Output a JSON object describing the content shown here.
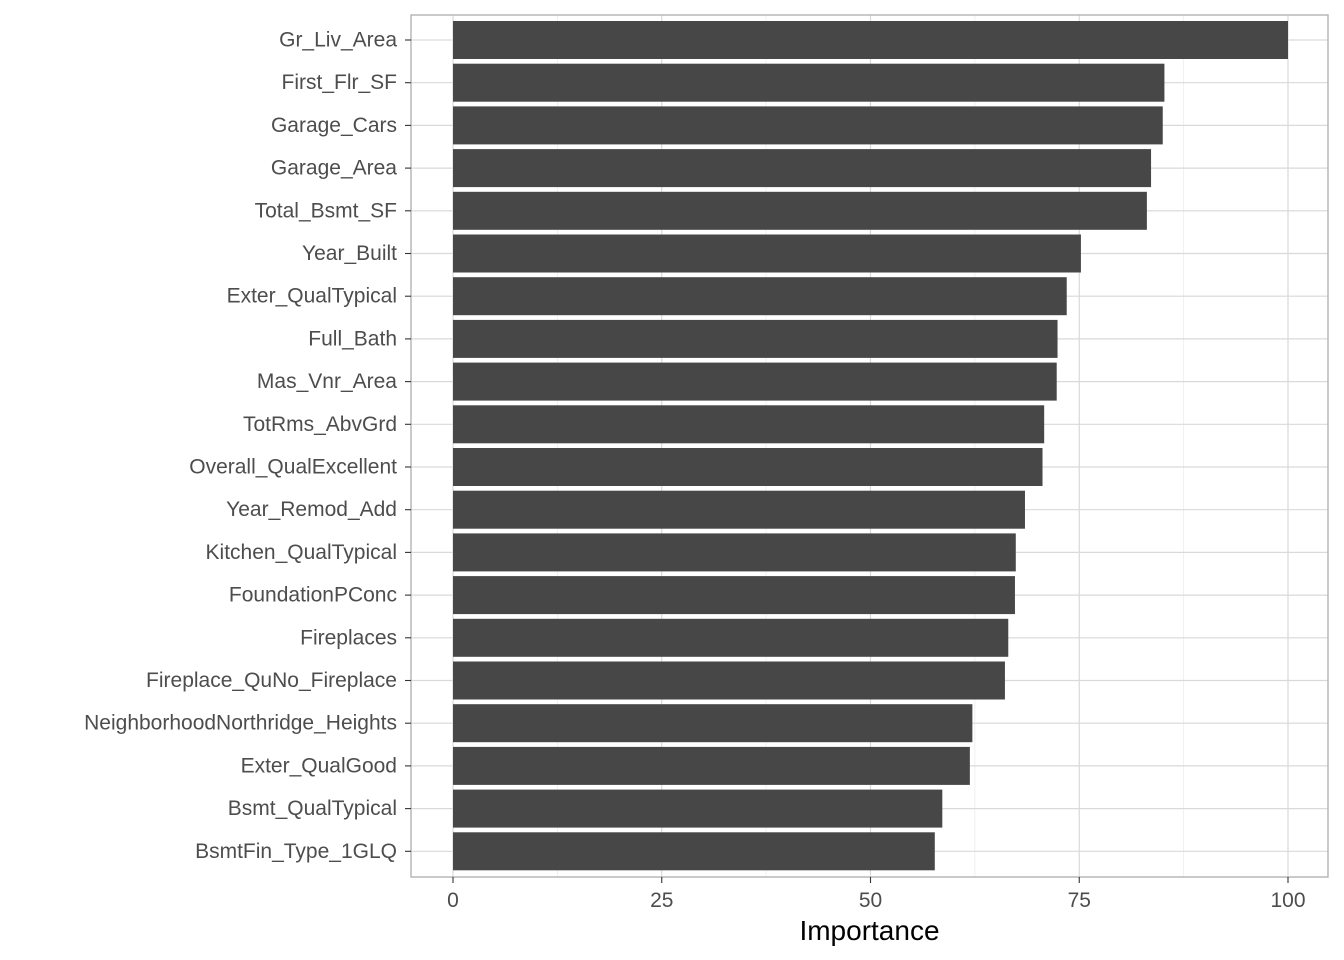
{
  "chart_data": {
    "type": "bar",
    "orientation": "horizontal",
    "title": "",
    "xlabel": "Importance",
    "ylabel": "",
    "xlim": [
      0,
      100
    ],
    "x_ticks": [
      0,
      25,
      50,
      75,
      100
    ],
    "x_tick_labels": [
      "0",
      "25",
      "50",
      "75",
      "100"
    ],
    "grid": true,
    "categories": [
      "Gr_Liv_Area",
      "First_Flr_SF",
      "Garage_Cars",
      "Garage_Area",
      "Total_Bsmt_SF",
      "Year_Built",
      "Exter_QualTypical",
      "Full_Bath",
      "Mas_Vnr_Area",
      "TotRms_AbvGrd",
      "Overall_QualExcellent",
      "Year_Remod_Add",
      "Kitchen_QualTypical",
      "FoundationPConc",
      "Fireplaces",
      "Fireplace_QuNo_Fireplace",
      "NeighborhoodNorthridge_Heights",
      "Exter_QualGood",
      "Bsmt_QualTypical",
      "BsmtFin_Type_1GLQ"
    ],
    "values": [
      100,
      85.2,
      85.0,
      83.6,
      83.1,
      75.2,
      73.5,
      72.4,
      72.3,
      70.8,
      70.6,
      68.5,
      67.4,
      67.3,
      66.5,
      66.1,
      62.2,
      61.9,
      58.6,
      57.7
    ],
    "bar_color": "#474747",
    "panel_border_color": "#b3b3b3",
    "grid_major_color": "#d9d9d9",
    "grid_minor_color": "#ebebeb"
  }
}
